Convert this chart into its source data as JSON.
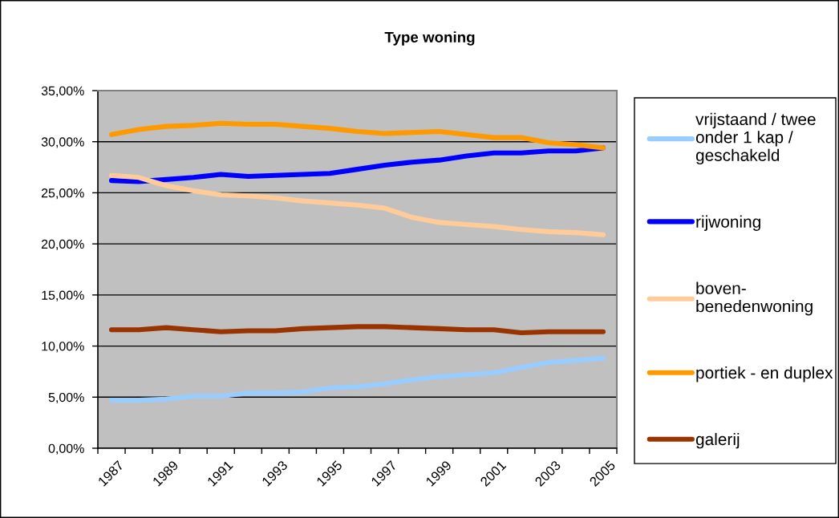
{
  "chart_data": {
    "type": "line",
    "title": "Type woning",
    "categories": [
      "1987",
      null,
      "1989",
      null,
      "1991",
      null,
      "1993",
      null,
      "1995",
      null,
      "1997",
      null,
      "1999",
      null,
      "2001",
      null,
      "2003",
      null,
      "2005"
    ],
    "series": [
      {
        "name": "vrijstaand / twee\nonder 1 kap /\ngeschakeld",
        "color": "#99ccff",
        "values": [
          4.7,
          4.7,
          4.8,
          5.1,
          5.1,
          5.4,
          5.4,
          5.5,
          5.9,
          6.0,
          6.3,
          6.7,
          7.0,
          7.2,
          7.4,
          7.9,
          8.4,
          8.6,
          8.8
        ]
      },
      {
        "name": "rijwoning",
        "color": "#0000ff",
        "values": [
          26.2,
          26.1,
          26.3,
          26.5,
          26.8,
          26.6,
          26.7,
          26.8,
          26.9,
          27.3,
          27.7,
          28.0,
          28.2,
          28.6,
          28.9,
          28.9,
          29.1,
          29.1,
          29.4
        ]
      },
      {
        "name": "boven-\nbenedenwoning",
        "color": "#ffcc99",
        "values": [
          26.7,
          26.5,
          25.7,
          25.2,
          24.8,
          24.7,
          24.5,
          24.2,
          24.0,
          23.8,
          23.5,
          22.6,
          22.1,
          21.9,
          21.7,
          21.4,
          21.2,
          21.1,
          20.9
        ]
      },
      {
        "name": "portiek - en duplex",
        "color": "#ff9900",
        "values": [
          30.7,
          31.2,
          31.5,
          31.6,
          31.8,
          31.7,
          31.7,
          31.5,
          31.3,
          31.0,
          30.8,
          30.9,
          31.0,
          30.7,
          30.4,
          30.4,
          29.9,
          29.7,
          29.4
        ]
      },
      {
        "name": "galerij",
        "color": "#993300",
        "values": [
          11.6,
          11.6,
          11.8,
          11.6,
          11.4,
          11.5,
          11.5,
          11.7,
          11.8,
          11.9,
          11.9,
          11.8,
          11.7,
          11.6,
          11.6,
          11.3,
          11.4,
          11.4,
          11.4
        ]
      }
    ],
    "ylim": [
      0,
      35
    ],
    "yticks": [
      {
        "value": 0,
        "label": "0,00%"
      },
      {
        "value": 5,
        "label": "5,00%"
      },
      {
        "value": 10,
        "label": "10,00%"
      },
      {
        "value": 15,
        "label": "15,00%"
      },
      {
        "value": 20,
        "label": "20,00%"
      },
      {
        "value": 25,
        "label": "25,00%"
      },
      {
        "value": 30,
        "label": "30,00%"
      },
      {
        "value": 35,
        "label": "35,00%"
      }
    ],
    "grid": "y",
    "legend": "right"
  }
}
